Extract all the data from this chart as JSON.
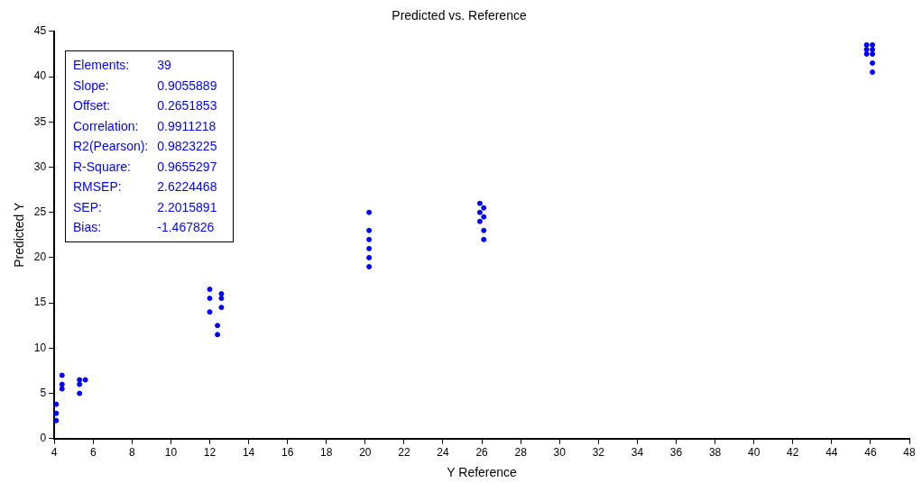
{
  "chart_data": {
    "type": "scatter",
    "title": "Predicted vs. Reference",
    "xlabel": "Y Reference",
    "ylabel": "Predicted Y",
    "series": [
      {
        "color": "#0000ff",
        "x": [
          4.1,
          4.1,
          4.1,
          4.4,
          4.4,
          4.4,
          5.3,
          5.3,
          5.3,
          5.6,
          12.4,
          12.4,
          12.0,
          12.0,
          12.0,
          12.6,
          12.6,
          12.6,
          20.2,
          20.2,
          20.2,
          20.2,
          20.2,
          20.2,
          26.1,
          26.1,
          25.9,
          25.9,
          25.9,
          26.1,
          26.1,
          46.1,
          45.8,
          45.8,
          46.1,
          46.1,
          46.1,
          45.8,
          46.1
        ],
        "values": [
          2,
          2.8,
          3.8,
          5.5,
          6,
          7,
          5,
          6,
          6.5,
          6.5,
          11.5,
          12.5,
          14,
          15.5,
          16.5,
          14.5,
          15.5,
          16,
          19,
          20,
          21,
          22,
          25,
          23,
          22,
          23,
          24,
          25,
          26,
          24.5,
          25.5,
          40.5,
          42.5,
          43.5,
          42.5,
          43.5,
          43,
          43,
          41.5
        ]
      }
    ],
    "xlim": [
      4,
      48
    ],
    "xticks": [
      4,
      6,
      8,
      10,
      12,
      14,
      16,
      18,
      20,
      22,
      24,
      26,
      28,
      30,
      32,
      34,
      36,
      38,
      40,
      42,
      44,
      46,
      48
    ],
    "ylim": [
      0,
      45
    ],
    "yticks": [
      0,
      5,
      10,
      15,
      20,
      25,
      30,
      35,
      40,
      45
    ],
    "grid": false,
    "legend": false,
    "marker": "circle",
    "annotations": [
      [
        "Elements:",
        "39"
      ],
      [
        "Slope:",
        "0.9055889"
      ],
      [
        "Offset:",
        "0.2651853"
      ],
      [
        "Correlation:",
        "0.9911218"
      ],
      [
        "R2(Pearson):",
        "0.9823225"
      ],
      [
        "R-Square:",
        "0.9655297"
      ],
      [
        "RMSEP:",
        "2.6224468"
      ],
      [
        "SEP:",
        "2.2015891"
      ],
      [
        "Bias:",
        "-1.467826"
      ]
    ]
  }
}
